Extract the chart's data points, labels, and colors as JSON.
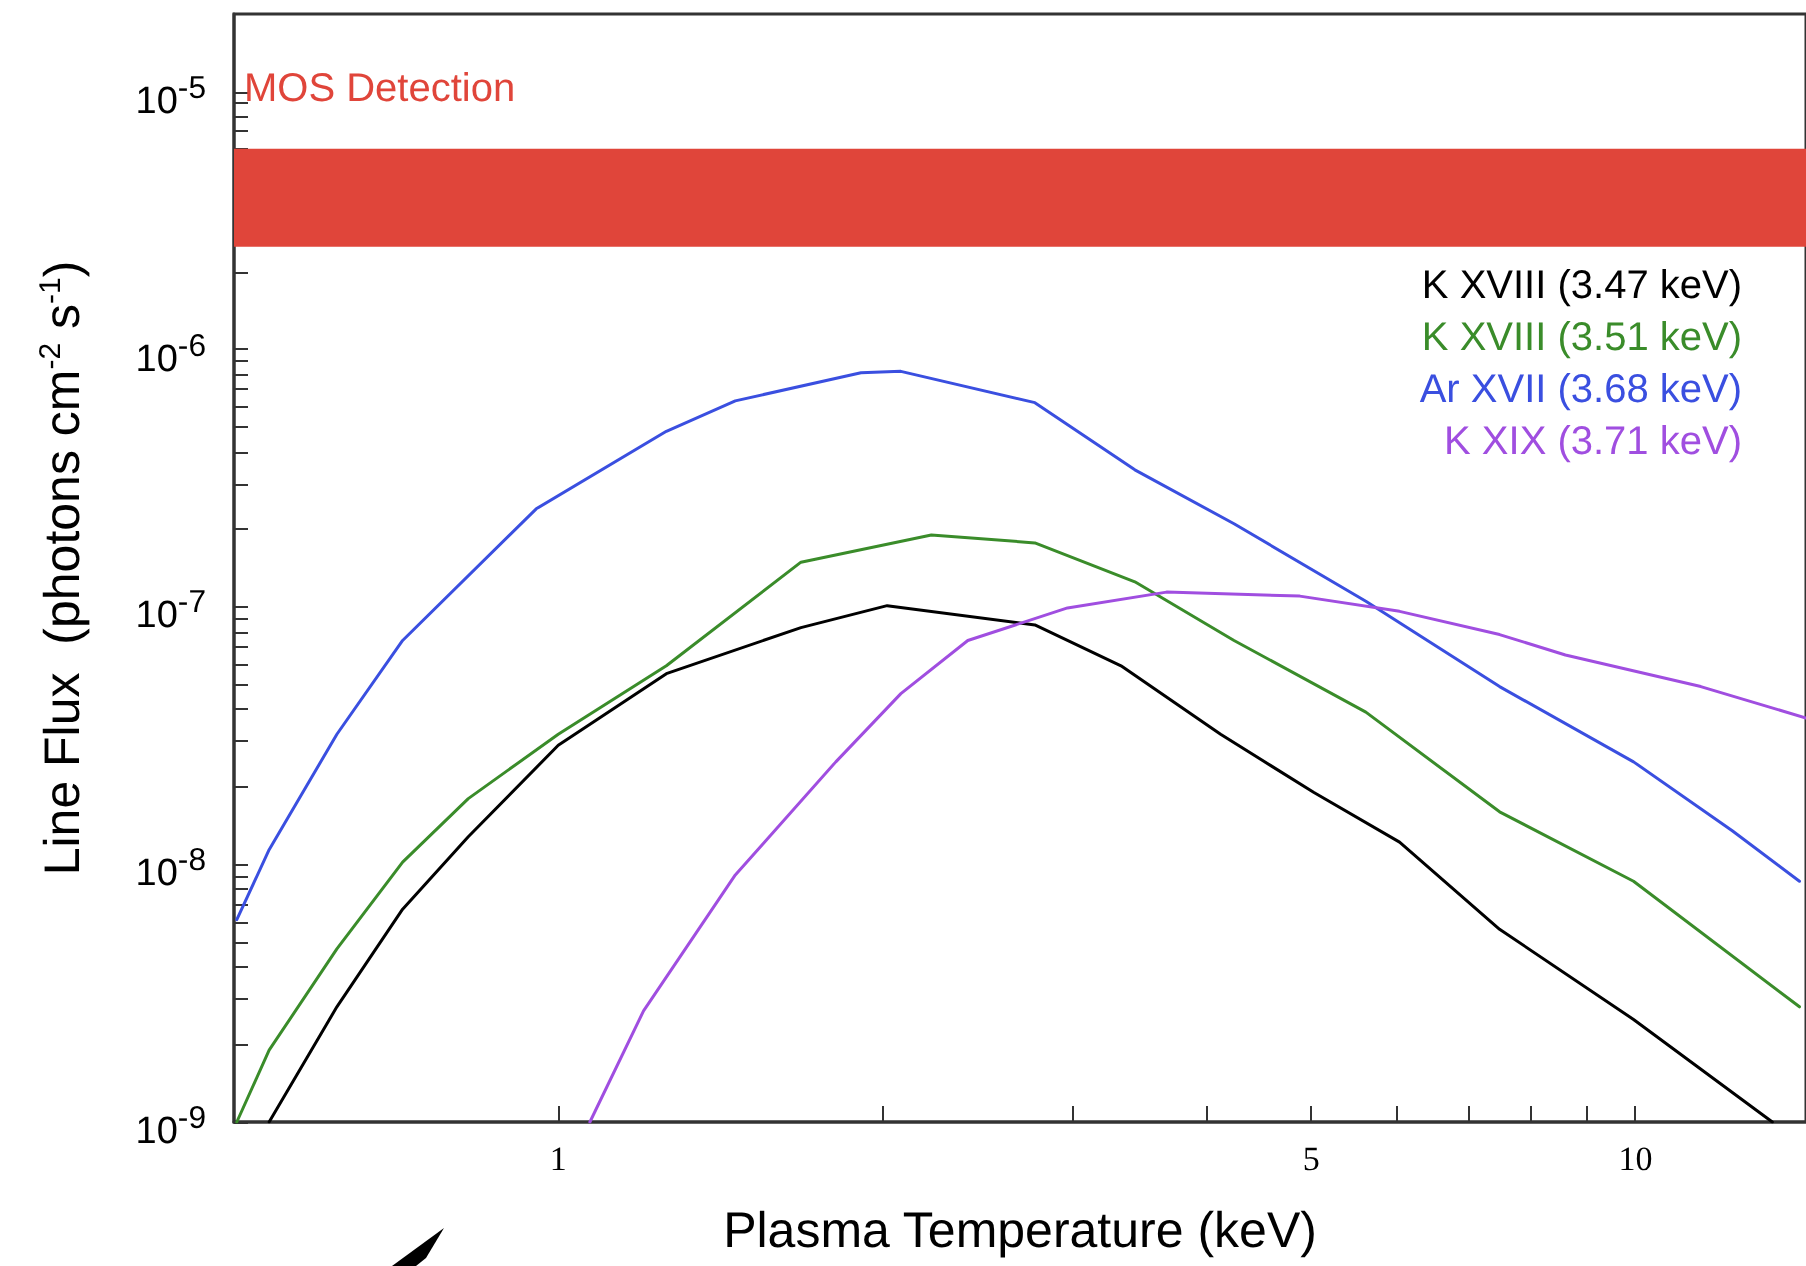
{
  "chart_data": {
    "type": "line",
    "xlabel": "Plasma Temperature (keV)",
    "ylabel": "Line Flux  (photons cm$^{-2}$ s$^{-1}$)",
    "log": "xy",
    "grid": false,
    "legend": "right",
    "marker": "none",
    "line_style": "solid",
    "xlim": [
      0.5,
      14.4
    ],
    "ylim": [
      1e-09,
      2e-05
    ],
    "xticks": [
      1,
      {
        "value": 2,
        "label": null
      },
      {
        "value": 3,
        "label": null
      },
      {
        "value": 4,
        "label": null
      },
      5,
      {
        "value": 6,
        "label": null
      },
      {
        "value": 7,
        "label": null
      },
      {
        "value": 8,
        "label": null
      },
      {
        "value": 9,
        "label": null
      },
      10
    ],
    "yticks": [
      {
        "value": 1e-09,
        "label": "10$^{-9}$"
      },
      {
        "value": 2e-09,
        "label": null
      },
      {
        "value": 3e-09,
        "label": null
      },
      {
        "value": 4e-09,
        "label": null
      },
      {
        "value": 5e-09,
        "label": null
      },
      {
        "value": 6e-09,
        "label": null
      },
      {
        "value": 7e-09,
        "label": null
      },
      {
        "value": 8e-09,
        "label": null
      },
      {
        "value": 9e-09,
        "label": null
      },
      {
        "value": 1e-08,
        "label": "10$^{-8}$"
      },
      {
        "value": 2e-08,
        "label": null
      },
      {
        "value": 3e-08,
        "label": null
      },
      {
        "value": 4e-08,
        "label": null
      },
      {
        "value": 5e-08,
        "label": null
      },
      {
        "value": 6e-08,
        "label": null
      },
      {
        "value": 7e-08,
        "label": null
      },
      {
        "value": 8e-08,
        "label": null
      },
      {
        "value": 9e-08,
        "label": null
      },
      {
        "value": 1e-07,
        "label": "10$^{-7}$"
      },
      {
        "value": 2e-07,
        "label": null
      },
      {
        "value": 3e-07,
        "label": null
      },
      {
        "value": 4e-07,
        "label": null
      },
      {
        "value": 5e-07,
        "label": null
      },
      {
        "value": 6e-07,
        "label": null
      },
      {
        "value": 7e-07,
        "label": null
      },
      {
        "value": 8e-07,
        "label": null
      },
      {
        "value": 9e-07,
        "label": null
      },
      {
        "value": 1e-06,
        "label": "10$^{-6}$"
      },
      {
        "value": 2e-06,
        "label": null
      },
      {
        "value": 3e-06,
        "label": null
      },
      {
        "value": 4e-06,
        "label": null
      },
      {
        "value": 5e-06,
        "label": null
      },
      {
        "value": 6e-06,
        "label": null
      },
      {
        "value": 7e-06,
        "label": null
      },
      {
        "value": 8e-06,
        "label": null
      },
      {
        "value": 9e-06,
        "label": null
      },
      {
        "value": 1e-05,
        "label": "10$^{-5}$"
      }
    ],
    "bands": [
      {
        "axis": "y",
        "from": 2.5e-06,
        "to": 6e-06,
        "label": "MOS Detection",
        "color": "#e0453a"
      }
    ],
    "series": [
      {
        "name": "K XVIII (3.47 keV)",
        "color": "#000000",
        "x": [
          0.539,
          0.623,
          0.717,
          0.825,
          1.0,
          1.26,
          1.68,
          2.02,
          2.77,
          3.33,
          4.12,
          5.03,
          6.04,
          7.48,
          9.96,
          13.4
        ],
        "values": [
          1e-09,
          2.8e-09,
          6.7e-09,
          1.28e-08,
          2.9e-08,
          5.5e-08,
          8.3e-08,
          1.01e-07,
          8.5e-08,
          5.9e-08,
          3.2e-08,
          1.9e-08,
          1.22e-08,
          5.6e-09,
          2.5e-09,
          1e-09
        ]
      },
      {
        "name": "K XVIII (3.51 keV)",
        "color": "#3a8c2a",
        "x": [
          0.503,
          0.539,
          0.623,
          0.717,
          0.825,
          1.0,
          1.26,
          1.68,
          2.22,
          2.77,
          3.43,
          4.24,
          5.62,
          7.48,
          9.96,
          14.2
        ],
        "values": [
          1e-09,
          1.9e-09,
          4.7e-09,
          1.02e-08,
          1.8e-08,
          3.2e-08,
          5.9e-08,
          1.49e-07,
          1.9e-07,
          1.77e-07,
          1.25e-07,
          7.4e-08,
          3.9e-08,
          1.6e-08,
          8.6e-09,
          2.8e-09
        ]
      },
      {
        "name": "Ar XVII (3.68 keV)",
        "color": "#3a4fe0",
        "x": [
          0.503,
          0.539,
          0.623,
          0.717,
          0.954,
          1.26,
          1.46,
          1.91,
          2.08,
          2.77,
          3.43,
          4.24,
          5.62,
          7.48,
          9.96,
          12.3,
          14.2
        ],
        "values": [
          6.1e-09,
          1.14e-08,
          3.2e-08,
          7.4e-08,
          2.4e-07,
          4.8e-07,
          6.3e-07,
          8.1e-07,
          8.2e-07,
          6.2e-07,
          3.4e-07,
          2.1e-07,
          1.05e-07,
          4.9e-08,
          2.5e-08,
          1.35e-08,
          8.6e-09
        ]
      },
      {
        "name": "K XIX (3.71 keV)",
        "color": "#a04ee0",
        "x": [
          1.07,
          1.2,
          1.46,
          1.81,
          2.08,
          2.4,
          2.97,
          3.67,
          4.88,
          6.04,
          7.48,
          8.61,
          11.5,
          14.4
        ],
        "values": [
          1e-09,
          2.7e-09,
          9.1e-09,
          2.5e-08,
          4.6e-08,
          7.4e-08,
          9.9e-08,
          1.14e-07,
          1.1e-07,
          9.6e-08,
          7.8e-08,
          6.5e-08,
          4.9e-08,
          3.7e-08
        ]
      }
    ]
  }
}
